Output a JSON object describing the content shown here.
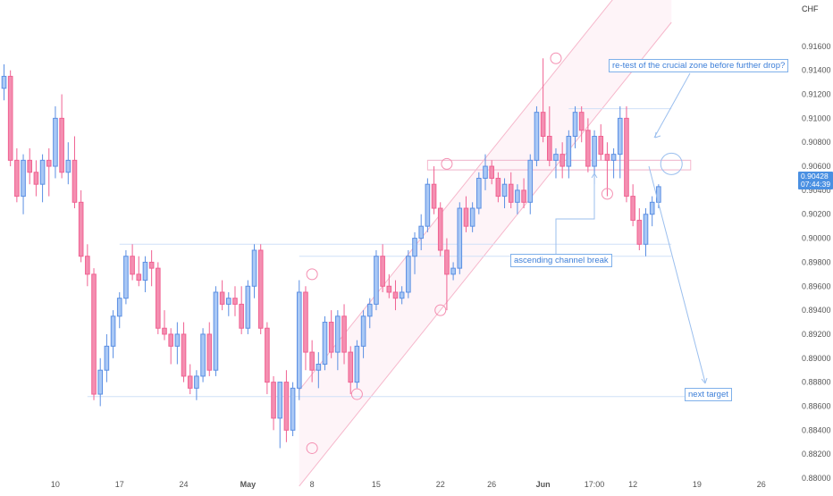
{
  "currency_label": "CHF",
  "last_price": "0.90428",
  "countdown": "07:44:39",
  "annotations": {
    "retest": "re-test of the crucial zone before further drop?",
    "channel_break": "ascending channel break",
    "next_target": "next target"
  },
  "colors": {
    "up": "#5b8fe3",
    "up_fill": "#a9c8f5",
    "down": "#f06292",
    "down_fill": "#f48fb1",
    "annotation": "#3d7fd8",
    "channel": "#f6b8cc",
    "grid_text": "#555555"
  },
  "chart_data": {
    "type": "candlestick",
    "ylim": [
      0.88,
      0.918
    ],
    "y_ticks": [
      "0.91600",
      "0.91400",
      "0.91200",
      "0.91000",
      "0.90800",
      "0.90600",
      "0.90400",
      "0.90200",
      "0.90000",
      "0.89800",
      "0.89600",
      "0.89400",
      "0.89200",
      "0.89000",
      "0.88800",
      "0.88600",
      "0.88400",
      "0.88200",
      "0.88000"
    ],
    "x_ticks": [
      {
        "label": "10",
        "i": 8
      },
      {
        "label": "17",
        "i": 18
      },
      {
        "label": "24",
        "i": 28
      },
      {
        "label": "May",
        "i": 38
      },
      {
        "label": "8",
        "i": 48
      },
      {
        "label": "15",
        "i": 58
      },
      {
        "label": "22",
        "i": 68
      },
      {
        "label": "26",
        "i": 76
      },
      {
        "label": "Jun",
        "i": 84
      },
      {
        "label": "17:00",
        "i": 92
      },
      {
        "label": "12",
        "i": 98
      },
      {
        "label": "19",
        "i": 108
      },
      {
        "label": "26",
        "i": 118
      }
    ],
    "candles": [
      {
        "o": 0.9125,
        "h": 0.9145,
        "l": 0.9115,
        "c": 0.9135
      },
      {
        "o": 0.9135,
        "h": 0.914,
        "l": 0.906,
        "c": 0.9065
      },
      {
        "o": 0.9065,
        "h": 0.9075,
        "l": 0.903,
        "c": 0.9035
      },
      {
        "o": 0.9035,
        "h": 0.907,
        "l": 0.902,
        "c": 0.9065
      },
      {
        "o": 0.9065,
        "h": 0.9075,
        "l": 0.9045,
        "c": 0.9055
      },
      {
        "o": 0.9055,
        "h": 0.9065,
        "l": 0.9035,
        "c": 0.9045
      },
      {
        "o": 0.9045,
        "h": 0.907,
        "l": 0.903,
        "c": 0.9065
      },
      {
        "o": 0.9065,
        "h": 0.9075,
        "l": 0.9035,
        "c": 0.906
      },
      {
        "o": 0.906,
        "h": 0.911,
        "l": 0.905,
        "c": 0.91
      },
      {
        "o": 0.91,
        "h": 0.912,
        "l": 0.905,
        "c": 0.9055
      },
      {
        "o": 0.9055,
        "h": 0.908,
        "l": 0.9045,
        "c": 0.9065
      },
      {
        "o": 0.9065,
        "h": 0.9085,
        "l": 0.9025,
        "c": 0.903
      },
      {
        "o": 0.903,
        "h": 0.904,
        "l": 0.898,
        "c": 0.8985
      },
      {
        "o": 0.8985,
        "h": 0.8995,
        "l": 0.896,
        "c": 0.897
      },
      {
        "o": 0.897,
        "h": 0.8975,
        "l": 0.8865,
        "c": 0.887
      },
      {
        "o": 0.887,
        "h": 0.89,
        "l": 0.886,
        "c": 0.889
      },
      {
        "o": 0.889,
        "h": 0.892,
        "l": 0.888,
        "c": 0.891
      },
      {
        "o": 0.891,
        "h": 0.894,
        "l": 0.89,
        "c": 0.8935
      },
      {
        "o": 0.8935,
        "h": 0.8955,
        "l": 0.8925,
        "c": 0.895
      },
      {
        "o": 0.895,
        "h": 0.899,
        "l": 0.8945,
        "c": 0.8985
      },
      {
        "o": 0.8985,
        "h": 0.8995,
        "l": 0.8965,
        "c": 0.897
      },
      {
        "o": 0.897,
        "h": 0.8985,
        "l": 0.896,
        "c": 0.8965
      },
      {
        "o": 0.8965,
        "h": 0.8985,
        "l": 0.8955,
        "c": 0.898
      },
      {
        "o": 0.898,
        "h": 0.899,
        "l": 0.896,
        "c": 0.8975
      },
      {
        "o": 0.8975,
        "h": 0.898,
        "l": 0.892,
        "c": 0.8925
      },
      {
        "o": 0.8925,
        "h": 0.894,
        "l": 0.8915,
        "c": 0.892
      },
      {
        "o": 0.892,
        "h": 0.8925,
        "l": 0.8895,
        "c": 0.891
      },
      {
        "o": 0.891,
        "h": 0.893,
        "l": 0.8895,
        "c": 0.892
      },
      {
        "o": 0.892,
        "h": 0.893,
        "l": 0.888,
        "c": 0.8885
      },
      {
        "o": 0.8885,
        "h": 0.8895,
        "l": 0.887,
        "c": 0.8875
      },
      {
        "o": 0.8875,
        "h": 0.889,
        "l": 0.8865,
        "c": 0.8885
      },
      {
        "o": 0.8885,
        "h": 0.8925,
        "l": 0.888,
        "c": 0.892
      },
      {
        "o": 0.892,
        "h": 0.893,
        "l": 0.8885,
        "c": 0.889
      },
      {
        "o": 0.889,
        "h": 0.896,
        "l": 0.8885,
        "c": 0.8955
      },
      {
        "o": 0.8955,
        "h": 0.8965,
        "l": 0.894,
        "c": 0.8945
      },
      {
        "o": 0.8945,
        "h": 0.8955,
        "l": 0.8935,
        "c": 0.895
      },
      {
        "o": 0.895,
        "h": 0.896,
        "l": 0.8935,
        "c": 0.8945
      },
      {
        "o": 0.8945,
        "h": 0.896,
        "l": 0.892,
        "c": 0.8925
      },
      {
        "o": 0.8925,
        "h": 0.8965,
        "l": 0.892,
        "c": 0.896
      },
      {
        "o": 0.896,
        "h": 0.8995,
        "l": 0.895,
        "c": 0.899
      },
      {
        "o": 0.899,
        "h": 0.8995,
        "l": 0.892,
        "c": 0.8925
      },
      {
        "o": 0.8925,
        "h": 0.893,
        "l": 0.887,
        "c": 0.888
      },
      {
        "o": 0.888,
        "h": 0.8885,
        "l": 0.884,
        "c": 0.885
      },
      {
        "o": 0.885,
        "h": 0.888,
        "l": 0.8825,
        "c": 0.888
      },
      {
        "o": 0.888,
        "h": 0.889,
        "l": 0.883,
        "c": 0.884
      },
      {
        "o": 0.884,
        "h": 0.888,
        "l": 0.8835,
        "c": 0.8875
      },
      {
        "o": 0.8875,
        "h": 0.8965,
        "l": 0.8865,
        "c": 0.8955
      },
      {
        "o": 0.8955,
        "h": 0.896,
        "l": 0.889,
        "c": 0.8905
      },
      {
        "o": 0.8905,
        "h": 0.8915,
        "l": 0.888,
        "c": 0.889
      },
      {
        "o": 0.889,
        "h": 0.8905,
        "l": 0.8875,
        "c": 0.8895
      },
      {
        "o": 0.8895,
        "h": 0.8935,
        "l": 0.889,
        "c": 0.893
      },
      {
        "o": 0.893,
        "h": 0.894,
        "l": 0.89,
        "c": 0.8905
      },
      {
        "o": 0.8905,
        "h": 0.894,
        "l": 0.889,
        "c": 0.8935
      },
      {
        "o": 0.8935,
        "h": 0.8945,
        "l": 0.8895,
        "c": 0.8905
      },
      {
        "o": 0.8905,
        "h": 0.891,
        "l": 0.887,
        "c": 0.888
      },
      {
        "o": 0.888,
        "h": 0.8915,
        "l": 0.8875,
        "c": 0.891
      },
      {
        "o": 0.891,
        "h": 0.894,
        "l": 0.89,
        "c": 0.8935
      },
      {
        "o": 0.8935,
        "h": 0.895,
        "l": 0.8925,
        "c": 0.8945
      },
      {
        "o": 0.8945,
        "h": 0.899,
        "l": 0.894,
        "c": 0.8985
      },
      {
        "o": 0.8985,
        "h": 0.8995,
        "l": 0.8955,
        "c": 0.896
      },
      {
        "o": 0.896,
        "h": 0.897,
        "l": 0.895,
        "c": 0.8955
      },
      {
        "o": 0.8955,
        "h": 0.8965,
        "l": 0.894,
        "c": 0.895
      },
      {
        "o": 0.895,
        "h": 0.896,
        "l": 0.8945,
        "c": 0.8955
      },
      {
        "o": 0.8955,
        "h": 0.899,
        "l": 0.895,
        "c": 0.8985
      },
      {
        "o": 0.8985,
        "h": 0.9005,
        "l": 0.897,
        "c": 0.9
      },
      {
        "o": 0.9,
        "h": 0.902,
        "l": 0.899,
        "c": 0.901
      },
      {
        "o": 0.901,
        "h": 0.905,
        "l": 0.9005,
        "c": 0.9045
      },
      {
        "o": 0.9045,
        "h": 0.906,
        "l": 0.902,
        "c": 0.9025
      },
      {
        "o": 0.9025,
        "h": 0.903,
        "l": 0.8985,
        "c": 0.899
      },
      {
        "o": 0.899,
        "h": 0.9,
        "l": 0.894,
        "c": 0.897
      },
      {
        "o": 0.897,
        "h": 0.898,
        "l": 0.8965,
        "c": 0.8975
      },
      {
        "o": 0.8975,
        "h": 0.903,
        "l": 0.897,
        "c": 0.9025
      },
      {
        "o": 0.9025,
        "h": 0.9035,
        "l": 0.9005,
        "c": 0.901
      },
      {
        "o": 0.901,
        "h": 0.903,
        "l": 0.9005,
        "c": 0.9025
      },
      {
        "o": 0.9025,
        "h": 0.9055,
        "l": 0.902,
        "c": 0.905
      },
      {
        "o": 0.905,
        "h": 0.907,
        "l": 0.904,
        "c": 0.906
      },
      {
        "o": 0.906,
        "h": 0.9065,
        "l": 0.9045,
        "c": 0.905
      },
      {
        "o": 0.905,
        "h": 0.9055,
        "l": 0.903,
        "c": 0.9035
      },
      {
        "o": 0.9035,
        "h": 0.905,
        "l": 0.9025,
        "c": 0.9045
      },
      {
        "o": 0.9045,
        "h": 0.9055,
        "l": 0.9025,
        "c": 0.903
      },
      {
        "o": 0.903,
        "h": 0.9045,
        "l": 0.902,
        "c": 0.904
      },
      {
        "o": 0.904,
        "h": 0.905,
        "l": 0.9025,
        "c": 0.903
      },
      {
        "o": 0.903,
        "h": 0.907,
        "l": 0.902,
        "c": 0.9065
      },
      {
        "o": 0.9065,
        "h": 0.911,
        "l": 0.906,
        "c": 0.9105
      },
      {
        "o": 0.9105,
        "h": 0.915,
        "l": 0.908,
        "c": 0.9085
      },
      {
        "o": 0.9085,
        "h": 0.911,
        "l": 0.906,
        "c": 0.9065
      },
      {
        "o": 0.9065,
        "h": 0.9075,
        "l": 0.905,
        "c": 0.907
      },
      {
        "o": 0.907,
        "h": 0.908,
        "l": 0.905,
        "c": 0.906
      },
      {
        "o": 0.906,
        "h": 0.909,
        "l": 0.905,
        "c": 0.9085
      },
      {
        "o": 0.9085,
        "h": 0.911,
        "l": 0.9075,
        "c": 0.9105
      },
      {
        "o": 0.9105,
        "h": 0.911,
        "l": 0.908,
        "c": 0.909
      },
      {
        "o": 0.909,
        "h": 0.91,
        "l": 0.9055,
        "c": 0.906
      },
      {
        "o": 0.906,
        "h": 0.909,
        "l": 0.9045,
        "c": 0.9085
      },
      {
        "o": 0.9085,
        "h": 0.9095,
        "l": 0.9065,
        "c": 0.907
      },
      {
        "o": 0.907,
        "h": 0.908,
        "l": 0.9035,
        "c": 0.9065
      },
      {
        "o": 0.9065,
        "h": 0.9075,
        "l": 0.905,
        "c": 0.907
      },
      {
        "o": 0.907,
        "h": 0.911,
        "l": 0.905,
        "c": 0.91
      },
      {
        "o": 0.91,
        "h": 0.911,
        "l": 0.903,
        "c": 0.9035
      },
      {
        "o": 0.9035,
        "h": 0.9045,
        "l": 0.901,
        "c": 0.9015
      },
      {
        "o": 0.9015,
        "h": 0.9025,
        "l": 0.899,
        "c": 0.8995
      },
      {
        "o": 0.8995,
        "h": 0.9025,
        "l": 0.8985,
        "c": 0.902
      },
      {
        "o": 0.902,
        "h": 0.9035,
        "l": 0.901,
        "c": 0.903
      },
      {
        "o": 0.903,
        "h": 0.9045,
        "l": 0.9025,
        "c": 0.9043
      }
    ],
    "channel": {
      "lower": [
        [
          47,
          0.88
        ],
        [
          86,
          0.906
        ]
      ],
      "width": 0.008
    },
    "circles": [
      {
        "i": 48,
        "p": 0.8825
      },
      {
        "i": 48,
        "p": 0.897
      },
      {
        "i": 55,
        "p": 0.887
      },
      {
        "i": 68,
        "p": 0.894
      },
      {
        "i": 69,
        "p": 0.9062
      },
      {
        "i": 86,
        "p": 0.915
      },
      {
        "i": 94,
        "p": 0.9037
      },
      {
        "i": 104,
        "p": 0.9062
      }
    ],
    "levels": [
      {
        "p": 0.8868,
        "from": 13,
        "to": 112
      },
      {
        "p": 0.8995,
        "from": 18,
        "to": 104
      },
      {
        "p": 0.8985,
        "from": 46,
        "to": 104
      },
      {
        "p": 0.9065,
        "from": 66,
        "to": 107
      },
      {
        "p": 0.9057,
        "from": 66,
        "to": 107
      },
      {
        "p": 0.9108,
        "from": 88,
        "to": 104
      }
    ]
  }
}
